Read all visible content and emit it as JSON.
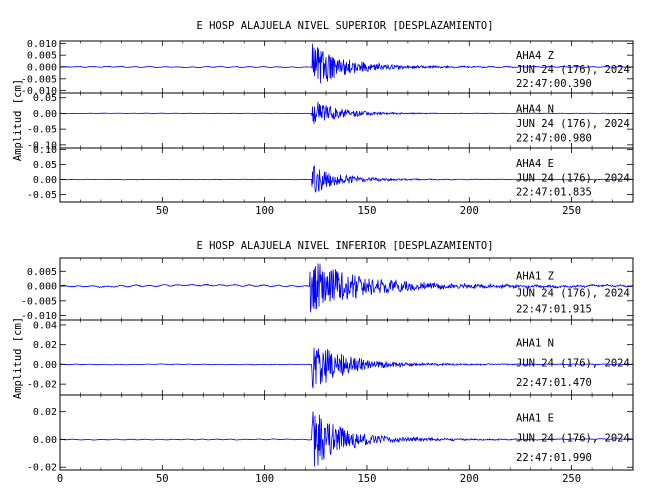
{
  "chart_data": [
    {
      "type": "line",
      "title": "E HOSP ALAJUELA NIVEL SUPERIOR [DESPLAZAMIENTO]",
      "ylabel": "Amplitud [cm]",
      "xlim": [
        0,
        280
      ],
      "x_ticks": [
        "50",
        "100",
        "150",
        "200",
        "250"
      ],
      "x_tick_values": [
        50,
        100,
        150,
        200,
        250
      ],
      "line_color": "#0000ff",
      "panels": [
        {
          "channel": "AHA4   Z",
          "date": "JUN 24 (176), 2024",
          "time": "22:47:00.390",
          "ylim": [
            -0.011,
            0.011
          ],
          "yticks": [
            {
              "v": 0.01,
              "label": "0.010"
            },
            {
              "v": 0.005,
              "label": "0.005"
            },
            {
              "v": 0.0,
              "label": "0.000"
            },
            {
              "v": -0.005,
              "label": "-0.005"
            },
            {
              "v": -0.01,
              "label": "-0.010"
            }
          ],
          "onset": 123,
          "peak": 0.0095,
          "noise": 0.0003,
          "tail": 0.08,
          "decay": 14
        },
        {
          "channel": "AHA4   N",
          "date": "JUN 24 (176), 2024",
          "time": "22:47:00.980",
          "ylim": [
            -0.11,
            0.065
          ],
          "yticks": [
            {
              "v": 0.05,
              "label": "0.05"
            },
            {
              "v": 0.0,
              "label": "0.00"
            },
            {
              "v": -0.05,
              "label": "-0.05"
            },
            {
              "v": -0.1,
              "label": "-0.10"
            }
          ],
          "onset": 123,
          "peak": 0.045,
          "noise": 0.0008,
          "tail": 0.06,
          "decay": 12
        },
        {
          "channel": "AHA4   E",
          "date": "JUN 24 (176), 2024",
          "time": "22:47:01.835",
          "ylim": [
            -0.075,
            0.105
          ],
          "yticks": [
            {
              "v": 0.1,
              "label": "0.10"
            },
            {
              "v": 0.05,
              "label": "0.05"
            },
            {
              "v": 0.0,
              "label": "0.00"
            },
            {
              "v": -0.05,
              "label": "-0.05"
            }
          ],
          "onset": 123,
          "peak": 0.05,
          "noise": 0.001,
          "tail": 0.06,
          "decay": 12
        }
      ]
    },
    {
      "type": "line",
      "title": "E HOSP ALAJUELA NIVEL INFERIOR [DESPLAZAMIENTO]",
      "ylabel": "Amplitud [cm]",
      "xlim": [
        0,
        280
      ],
      "x_ticks": [
        "0",
        "50",
        "100",
        "150",
        "200",
        "250"
      ],
      "x_tick_values": [
        0,
        50,
        100,
        150,
        200,
        250
      ],
      "line_color": "#0000ff",
      "panels": [
        {
          "channel": "AHA1   Z",
          "date": "JUN 24 (176), 2024",
          "time": "22:47:01.915",
          "ylim": [
            -0.0115,
            0.0095
          ],
          "yticks": [
            {
              "v": 0.005,
              "label": "0.005"
            },
            {
              "v": 0.0,
              "label": "0.000"
            },
            {
              "v": -0.005,
              "label": "-0.005"
            },
            {
              "v": -0.01,
              "label": "-0.010"
            }
          ],
          "onset": 122,
          "peak": 0.0085,
          "noise": 0.0004,
          "tail": 0.12,
          "decay": 22
        },
        {
          "channel": "AHA1   N",
          "date": "JUN 24 (176), 2024",
          "time": "22:47:01.470",
          "ylim": [
            -0.031,
            0.045
          ],
          "yticks": [
            {
              "v": 0.04,
              "label": "0.04"
            },
            {
              "v": 0.02,
              "label": "0.02"
            },
            {
              "v": 0.0,
              "label": "0.00"
            },
            {
              "v": -0.02,
              "label": "-0.02"
            }
          ],
          "onset": 123,
          "peak": 0.028,
          "noise": 0.0004,
          "tail": 0.07,
          "decay": 14
        },
        {
          "channel": "AHA1   E",
          "date": "JUN 24 (176), 2024",
          "time": "22:47:01.990",
          "ylim": [
            -0.022,
            0.032
          ],
          "yticks": [
            {
              "v": 0.02,
              "label": "0.02"
            },
            {
              "v": 0.0,
              "label": "0.00"
            },
            {
              "v": -0.02,
              "label": "-0.02"
            }
          ],
          "onset": 123,
          "peak": 0.022,
          "noise": 0.0004,
          "tail": 0.07,
          "decay": 14
        }
      ]
    }
  ]
}
